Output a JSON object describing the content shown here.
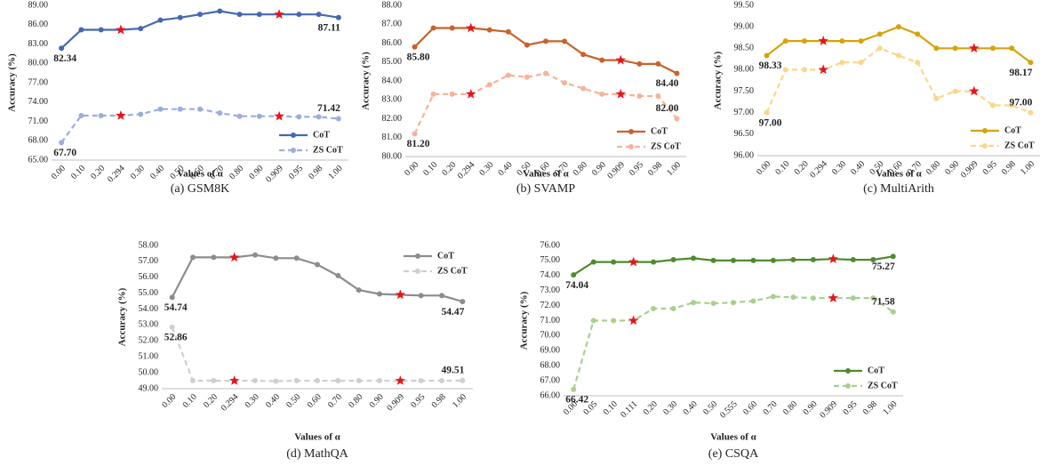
{
  "chart_data": [
    {
      "type": "line",
      "caption": "(a) GSM8K",
      "xlabel": "Values of α",
      "ylabel": "Accuracy (%)",
      "categories": [
        "0.00",
        "0.10",
        "0.20",
        "0.294",
        "0.30",
        "0.40",
        "0.50",
        "0.60",
        "0.70",
        "0.80",
        "0.90",
        "0.909",
        "0.95",
        "0.98",
        "1.00"
      ],
      "ylim": [
        65,
        89
      ],
      "yticks": [
        {
          "value": 65,
          "label": "65.00"
        },
        {
          "value": 68,
          "label": "68.00"
        },
        {
          "value": 71,
          "label": "71.00"
        },
        {
          "value": 74,
          "label": "74.00"
        },
        {
          "value": 77,
          "label": "77.00"
        },
        {
          "value": 80,
          "label": "80.00"
        },
        {
          "value": 83,
          "label": "83.00"
        },
        {
          "value": 86,
          "label": "86.00"
        },
        {
          "value": 89,
          "label": "89.00"
        }
      ],
      "legend": "lower right",
      "highlight": [
        3,
        11
      ],
      "highlight_color": "#e8141c",
      "series": [
        {
          "name": "CoT",
          "color": "#4469b0",
          "dashed": false,
          "values": [
            82.34,
            85.2,
            85.2,
            85.2,
            85.4,
            86.7,
            87.1,
            87.6,
            88.1,
            87.6,
            87.6,
            87.6,
            87.6,
            87.6,
            87.11
          ],
          "value_labels": [
            "82.34",
            null,
            null,
            null,
            null,
            null,
            null,
            null,
            null,
            null,
            null,
            null,
            null,
            null,
            "87.11"
          ]
        },
        {
          "name": "ZS CoT",
          "color": "#9cadde",
          "dashed": true,
          "values": [
            67.7,
            71.9,
            71.9,
            71.9,
            72.1,
            72.9,
            72.9,
            72.9,
            72.3,
            71.8,
            71.8,
            71.8,
            71.7,
            71.7,
            71.42
          ],
          "value_labels": [
            "67.70",
            null,
            null,
            null,
            null,
            null,
            null,
            null,
            null,
            null,
            null,
            null,
            null,
            null,
            "71.42"
          ]
        }
      ]
    },
    {
      "type": "line",
      "caption": "(b) SVAMP",
      "xlabel": "Values of α",
      "ylabel": "Accuracy (%)",
      "categories": [
        "0.00",
        "0.10",
        "0.20",
        "0.294",
        "0.30",
        "0.40",
        "0.50",
        "0.60",
        "0.70",
        "0.80",
        "0.90",
        "0.909",
        "0.95",
        "0.98",
        "1.00"
      ],
      "ylim": [
        80,
        88
      ],
      "yticks": [
        {
          "value": 80,
          "label": "80.00"
        },
        {
          "value": 81,
          "label": "81.00"
        },
        {
          "value": 82,
          "label": "82.00"
        },
        {
          "value": 83,
          "label": "83.00"
        },
        {
          "value": 84,
          "label": "84.00"
        },
        {
          "value": 85,
          "label": "85.00"
        },
        {
          "value": 86,
          "label": "86.00"
        },
        {
          "value": 87,
          "label": "87.00"
        },
        {
          "value": 88,
          "label": "88.00"
        }
      ],
      "legend": "lower right",
      "highlight": [
        3,
        11
      ],
      "highlight_color": "#e8141c",
      "series": [
        {
          "name": "CoT",
          "color": "#c9622b",
          "dashed": false,
          "values": [
            85.8,
            86.8,
            86.8,
            86.8,
            86.7,
            86.6,
            85.9,
            86.1,
            86.1,
            85.4,
            85.1,
            85.1,
            84.9,
            84.9,
            84.4
          ],
          "value_labels": [
            "85.80",
            null,
            null,
            null,
            null,
            null,
            null,
            null,
            null,
            null,
            null,
            null,
            null,
            null,
            "84.40"
          ]
        },
        {
          "name": "ZS CoT",
          "color": "#f3b49a",
          "dashed": true,
          "values": [
            81.2,
            83.3,
            83.3,
            83.3,
            83.8,
            84.3,
            84.2,
            84.4,
            83.9,
            83.6,
            83.3,
            83.3,
            83.2,
            83.2,
            82.0
          ],
          "value_labels": [
            "81.20",
            null,
            null,
            null,
            null,
            null,
            null,
            null,
            null,
            null,
            null,
            null,
            null,
            null,
            "82.00"
          ]
        }
      ]
    },
    {
      "type": "line",
      "caption": "(c) MultiArith",
      "xlabel": "Values of α",
      "ylabel": "Accuracy (%)",
      "categories": [
        "0.00",
        "0.10",
        "0.20",
        "0.294",
        "0.30",
        "0.40",
        "0.50",
        "0.60",
        "0.70",
        "0.80",
        "0.90",
        "0.909",
        "0.95",
        "0.98",
        "1.00"
      ],
      "ylim": [
        96,
        99.5
      ],
      "yticks": [
        {
          "value": 96,
          "label": "96.00"
        },
        {
          "value": 96.5,
          "label": "96.50"
        },
        {
          "value": 97,
          "label": "97.00"
        },
        {
          "value": 97.5,
          "label": "97.50"
        },
        {
          "value": 98,
          "label": "98.00"
        },
        {
          "value": 98.5,
          "label": "98.50"
        },
        {
          "value": 99,
          "label": "99.00"
        },
        {
          "value": 99.5,
          "label": "99.50"
        }
      ],
      "legend": "lower right",
      "highlight": [
        3,
        11
      ],
      "highlight_color": "#e8141c",
      "series": [
        {
          "name": "CoT",
          "color": "#d6a30c",
          "dashed": false,
          "values": [
            98.33,
            98.67,
            98.67,
            98.67,
            98.67,
            98.67,
            98.83,
            99.0,
            98.83,
            98.5,
            98.5,
            98.5,
            98.5,
            98.5,
            98.17
          ],
          "value_labels": [
            "98.33",
            null,
            null,
            null,
            null,
            null,
            null,
            null,
            null,
            null,
            null,
            null,
            null,
            null,
            "98.17"
          ]
        },
        {
          "name": "ZS CoT",
          "color": "#fbd68a",
          "dashed": true,
          "values": [
            97.0,
            98.0,
            98.0,
            98.0,
            98.17,
            98.17,
            98.5,
            98.33,
            98.17,
            97.33,
            97.5,
            97.5,
            97.17,
            97.17,
            97.0
          ],
          "value_labels": [
            "97.00",
            null,
            null,
            null,
            null,
            null,
            null,
            null,
            null,
            null,
            null,
            null,
            null,
            null,
            "97.00"
          ]
        }
      ]
    },
    {
      "type": "line",
      "caption": "(d) MathQA",
      "xlabel": "Values of α",
      "ylabel": "Accuracy (%)",
      "categories": [
        "0.00",
        "0.10",
        "0.20",
        "0.294",
        "0.30",
        "0.40",
        "0.50",
        "0.60",
        "0.70",
        "0.80",
        "0.90",
        "0.909",
        "0.95",
        "0.98",
        "1.00"
      ],
      "ylim": [
        49,
        58
      ],
      "yticks": [
        {
          "value": 49,
          "label": "49.00"
        },
        {
          "value": 50,
          "label": "50.00"
        },
        {
          "value": 51,
          "label": "51.00"
        },
        {
          "value": 52,
          "label": "52.00"
        },
        {
          "value": 53,
          "label": "53.00"
        },
        {
          "value": 54,
          "label": "54.00"
        },
        {
          "value": 55,
          "label": "55.00"
        },
        {
          "value": 56,
          "label": "56.00"
        },
        {
          "value": 57,
          "label": "57.00"
        },
        {
          "value": 58,
          "label": "58.00"
        }
      ],
      "legend": "upper right",
      "highlight": [
        3,
        11
      ],
      "highlight_color": "#e8141c",
      "series": [
        {
          "name": "CoT",
          "color": "#8c8c8c",
          "dashed": false,
          "values": [
            54.74,
            57.25,
            57.25,
            57.25,
            57.4,
            57.2,
            57.2,
            56.8,
            56.1,
            55.2,
            54.95,
            54.9,
            54.85,
            54.85,
            54.47
          ],
          "value_labels": [
            "54.74",
            null,
            null,
            null,
            null,
            null,
            null,
            null,
            null,
            null,
            null,
            null,
            null,
            null,
            "54.47"
          ]
        },
        {
          "name": "ZS CoT",
          "color": "#cfcfcf",
          "dashed": true,
          "values": [
            52.86,
            49.5,
            49.5,
            49.5,
            49.5,
            49.47,
            49.5,
            49.5,
            49.5,
            49.5,
            49.5,
            49.5,
            49.5,
            49.5,
            49.51
          ],
          "value_labels": [
            "52.86",
            null,
            null,
            null,
            null,
            null,
            null,
            null,
            null,
            null,
            null,
            null,
            null,
            null,
            "49.51"
          ]
        }
      ]
    },
    {
      "type": "line",
      "caption": "(e) CSQA",
      "xlabel": "Values of α",
      "ylabel": "Accuracy (%)",
      "categories": [
        "0.00",
        "0.05",
        "0.10",
        "0.111",
        "0.20",
        "0.30",
        "0.40",
        "0.50",
        "0.555",
        "0.60",
        "0.70",
        "0.80",
        "0.90",
        "0.909",
        "0.95",
        "0.98",
        "1.00"
      ],
      "ylim": [
        66,
        76
      ],
      "yticks": [
        {
          "value": 66,
          "label": "66.00"
        },
        {
          "value": 67,
          "label": "67.00"
        },
        {
          "value": 68,
          "label": "68.00"
        },
        {
          "value": 69,
          "label": "69.00"
        },
        {
          "value": 70,
          "label": "70.00"
        },
        {
          "value": 71,
          "label": "71.00"
        },
        {
          "value": 72,
          "label": "72.00"
        },
        {
          "value": 73,
          "label": "73.00"
        },
        {
          "value": 74,
          "label": "74.00"
        },
        {
          "value": 75,
          "label": "75.00"
        },
        {
          "value": 76,
          "label": "76.00"
        }
      ],
      "legend": "lower right",
      "highlight": [
        3,
        13
      ],
      "highlight_color": "#e8141c",
      "series": [
        {
          "name": "CoT",
          "color": "#4f8a2e",
          "dashed": false,
          "values": [
            74.04,
            74.9,
            74.9,
            74.9,
            74.9,
            75.05,
            75.15,
            75.0,
            75.0,
            75.0,
            75.0,
            75.05,
            75.05,
            75.1,
            75.05,
            75.05,
            75.27
          ],
          "value_labels": [
            "74.04",
            null,
            null,
            null,
            null,
            null,
            null,
            null,
            null,
            null,
            null,
            null,
            null,
            null,
            null,
            null,
            "75.27"
          ]
        },
        {
          "name": "ZS CoT",
          "color": "#a9cf8f",
          "dashed": true,
          "values": [
            66.42,
            71.0,
            71.0,
            71.0,
            71.8,
            71.8,
            72.2,
            72.15,
            72.2,
            72.3,
            72.6,
            72.55,
            72.5,
            72.5,
            72.5,
            72.5,
            71.58
          ],
          "value_labels": [
            "66.42",
            null,
            null,
            null,
            null,
            null,
            null,
            null,
            null,
            null,
            null,
            null,
            null,
            null,
            null,
            null,
            "71.58"
          ]
        }
      ]
    }
  ]
}
